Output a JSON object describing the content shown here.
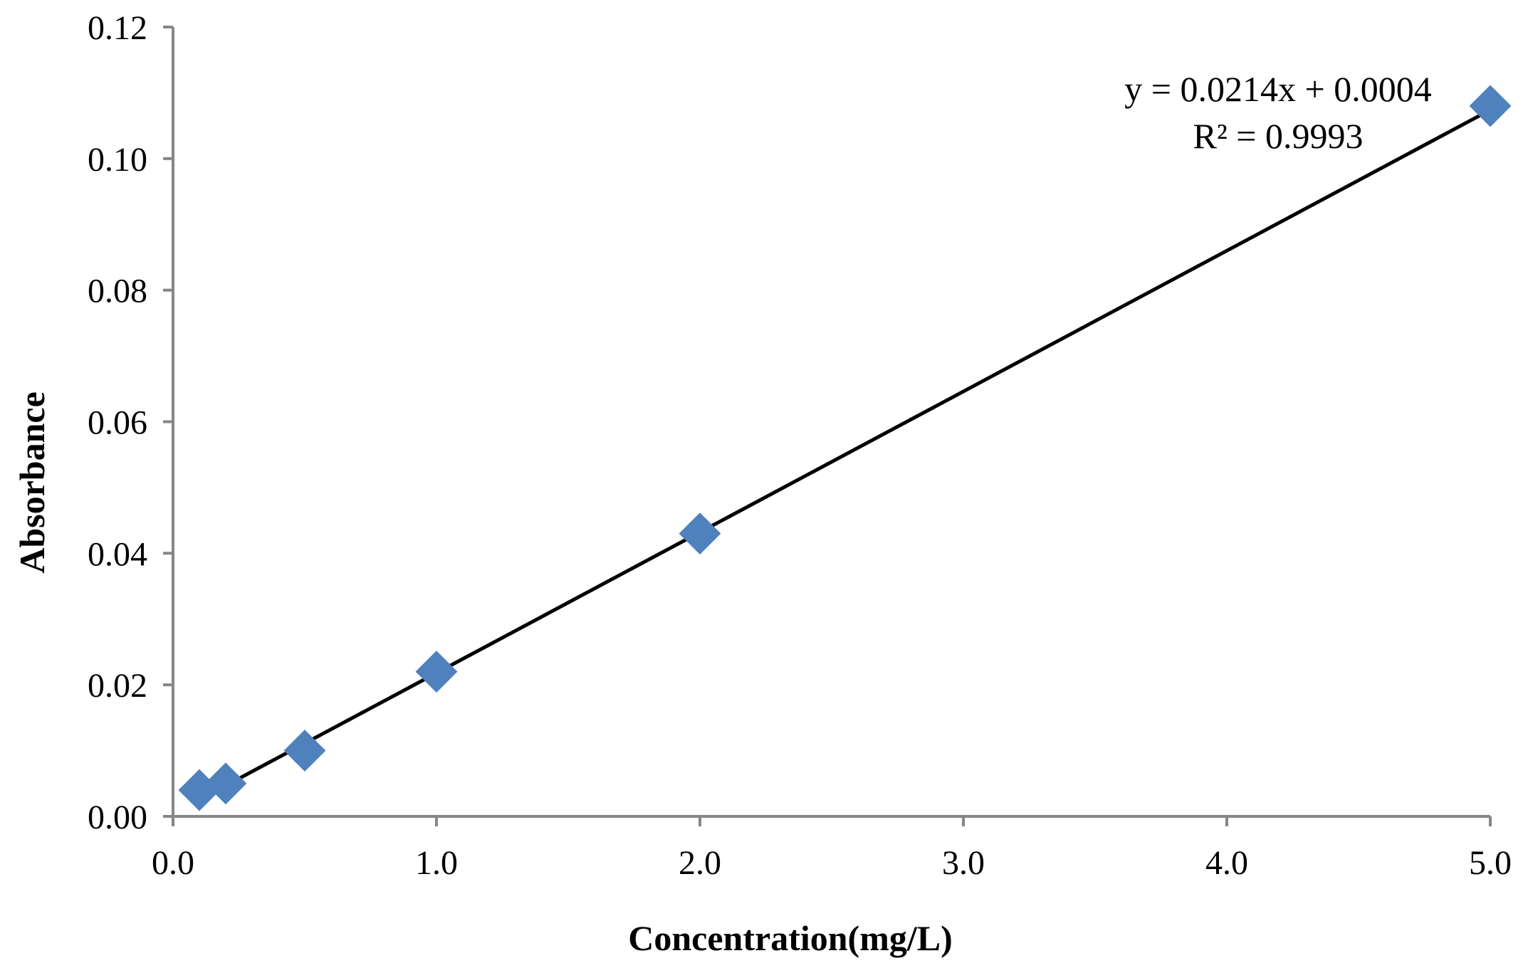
{
  "chart_data": {
    "type": "scatter",
    "title": "",
    "xlabel": "Concentration(mg/L)",
    "ylabel": "Absorbance",
    "xlim": [
      0,
      5
    ],
    "ylim": [
      0,
      0.12
    ],
    "x_ticks": [
      "0.0",
      "1.0",
      "2.0",
      "3.0",
      "4.0",
      "5.0"
    ],
    "x_tick_values": [
      0,
      1,
      2,
      3,
      4,
      5
    ],
    "y_ticks": [
      "0.00",
      "0.02",
      "0.04",
      "0.06",
      "0.08",
      "0.10",
      "0.12"
    ],
    "y_tick_values": [
      0,
      0.02,
      0.04,
      0.06,
      0.08,
      0.1,
      0.12
    ],
    "grid": false,
    "legend": "none",
    "series": [
      {
        "marker": "diamond",
        "color": "#4f81bd",
        "x": [
          0.1,
          0.2,
          0.5,
          1.0,
          2.0,
          5.0
        ],
        "y": [
          0.004,
          0.005,
          0.01,
          0.022,
          0.043,
          0.108
        ]
      }
    ],
    "trendline": {
      "type": "linear",
      "slope": 0.0214,
      "intercept": 0.0004,
      "x_range": [
        0.1,
        5.0
      ],
      "color": "#000000",
      "equation_label": "y = 0.0214x + 0.0004",
      "r2_label": "R² = 0.9993"
    },
    "axis_color": "#868686"
  }
}
